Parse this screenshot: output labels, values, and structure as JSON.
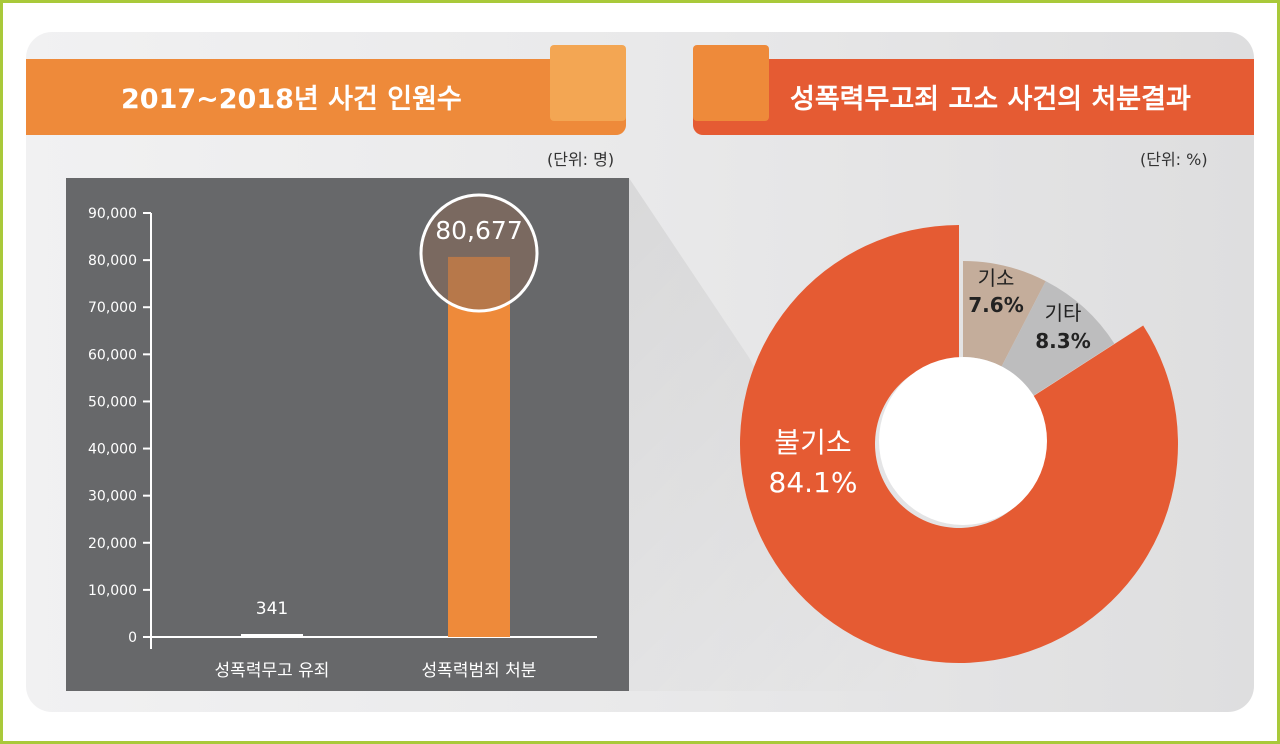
{
  "left": {
    "title": "2017~2018년 사건 인원수",
    "unit": "(단위: 명)"
  },
  "right": {
    "title": "성폭력무고죄 고소 사건의 처분결과",
    "unit": "(단위: %)"
  },
  "chart_data": [
    {
      "type": "bar",
      "title": "2017~2018년 사건 인원수",
      "unit": "(단위: 명)",
      "categories": [
        "성폭력무고 유죄",
        "성폭력범죄 처분"
      ],
      "values": [
        341,
        80677
      ],
      "value_labels": [
        "341",
        "80,677"
      ],
      "ylim": [
        0,
        90000
      ],
      "yticks": [
        "0",
        "10,000",
        "20,000",
        "30,000",
        "40,000",
        "50,000",
        "60,000",
        "70,000",
        "80,000",
        "90,000"
      ],
      "colors": {
        "bar1": "#ffffff",
        "bar2": "#ee8a3a",
        "panel": "#67686a",
        "highlight": "#8a6a58"
      }
    },
    {
      "type": "pie",
      "title": "성폭력무고죄 고소 사건의 처분결과",
      "unit": "(단위: %)",
      "slices": [
        {
          "label": "기소",
          "value": 7.6,
          "value_label": "7.6%",
          "color": "#c4ad9b"
        },
        {
          "label": "기타",
          "value": 8.3,
          "value_label": "8.3%",
          "color": "#bdbdbe"
        },
        {
          "label": "불기소",
          "value": 84.1,
          "value_label": "84.1%",
          "color": "#e55b33"
        }
      ],
      "donut": true
    }
  ]
}
